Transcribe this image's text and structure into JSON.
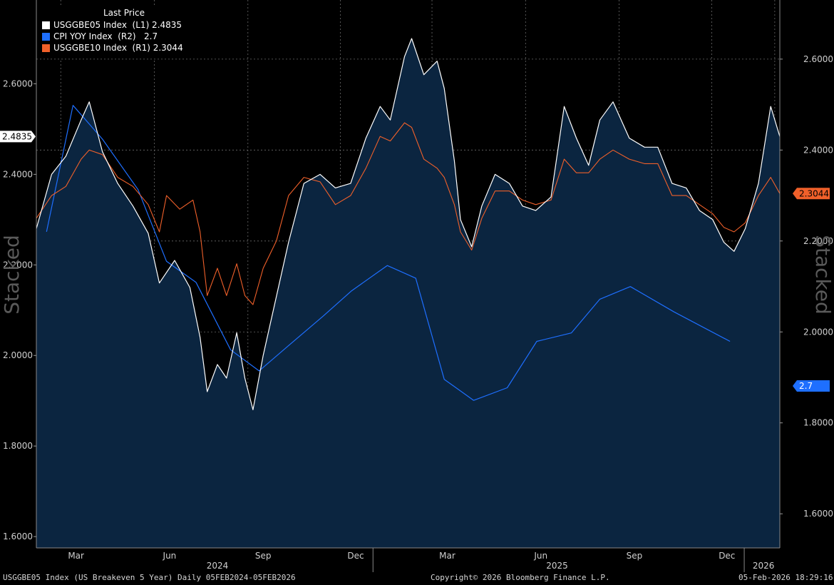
{
  "legend": {
    "header": "Last Price",
    "items": [
      {
        "label": "USGGBE05 Index  (L1) 2.4835",
        "color": "#ffffff"
      },
      {
        "label": "CPI YOY Index  (R2)   2.7",
        "color": "#1e6fff"
      },
      {
        "label": "USGGBE10 Index  (R1) 2.3044",
        "color": "#f0602a"
      }
    ]
  },
  "left_axis": {
    "label": "Stacked",
    "ticks": [
      "1.6000",
      "1.8000",
      "2.0000",
      "2.2000",
      "2.4000",
      "2.6000"
    ],
    "last_badge": "2.4835"
  },
  "right_axis": {
    "label": "Stacked",
    "ticks": [
      "1.6000",
      "1.8000",
      "2.0000",
      "2.2000",
      "2.4000",
      "2.6000"
    ],
    "badges": [
      "2.3044",
      "2.7"
    ]
  },
  "x_axis": {
    "months": [
      "Mar",
      "Jun",
      "Sep",
      "Dec",
      "Mar",
      "Jun",
      "Sep",
      "Dec"
    ],
    "years": [
      "2024",
      "2025",
      "2026"
    ]
  },
  "footer": {
    "left": "USGGBE05 Index (US Breakeven 5 Year) Daily 05FEB2024-05FEB2026",
    "center": "Copyright© 2026 Bloomberg Finance L.P.",
    "right": "05-Feb-2026 18:29:16"
  },
  "colors": {
    "area": "#0b2540",
    "be5": "#ffffff",
    "be10": "#f0602a",
    "cpi": "#1e6fff",
    "background": "#000000"
  },
  "chart_data": {
    "type": "line",
    "title": "",
    "x_range": [
      "2024-02-05",
      "2026-02-05"
    ],
    "left_axis_range": [
      1.575,
      2.785
    ],
    "right_axis_range": [
      1.525,
      2.73
    ],
    "grid": true,
    "series": [
      {
        "name": "USGGBE05 Index",
        "axis": "L1",
        "style": "area",
        "points": [
          [
            "2024-02-05",
            2.28
          ],
          [
            "2024-02-20",
            2.4
          ],
          [
            "2024-03-05",
            2.44
          ],
          [
            "2024-03-20",
            2.52
          ],
          [
            "2024-03-28",
            2.56
          ],
          [
            "2024-04-10",
            2.45
          ],
          [
            "2024-04-25",
            2.38
          ],
          [
            "2024-05-10",
            2.33
          ],
          [
            "2024-05-25",
            2.27
          ],
          [
            "2024-06-05",
            2.16
          ],
          [
            "2024-06-20",
            2.21
          ],
          [
            "2024-07-05",
            2.15
          ],
          [
            "2024-07-15",
            2.04
          ],
          [
            "2024-07-22",
            1.92
          ],
          [
            "2024-08-01",
            1.98
          ],
          [
            "2024-08-10",
            1.95
          ],
          [
            "2024-08-20",
            2.05
          ],
          [
            "2024-08-28",
            1.95
          ],
          [
            "2024-09-05",
            1.88
          ],
          [
            "2024-09-15",
            2.0
          ],
          [
            "2024-09-28",
            2.13
          ],
          [
            "2024-10-10",
            2.25
          ],
          [
            "2024-10-25",
            2.38
          ],
          [
            "2024-11-10",
            2.4
          ],
          [
            "2024-11-25",
            2.37
          ],
          [
            "2024-12-10",
            2.38
          ],
          [
            "2024-12-25",
            2.48
          ],
          [
            "2025-01-08",
            2.55
          ],
          [
            "2025-01-18",
            2.52
          ],
          [
            "2025-02-01",
            2.66
          ],
          [
            "2025-02-08",
            2.7
          ],
          [
            "2025-02-20",
            2.62
          ],
          [
            "2025-03-05",
            2.65
          ],
          [
            "2025-03-12",
            2.59
          ],
          [
            "2025-03-22",
            2.43
          ],
          [
            "2025-03-28",
            2.3
          ],
          [
            "2025-04-08",
            2.24
          ],
          [
            "2025-04-18",
            2.33
          ],
          [
            "2025-05-01",
            2.4
          ],
          [
            "2025-05-15",
            2.38
          ],
          [
            "2025-05-28",
            2.33
          ],
          [
            "2025-06-10",
            2.32
          ],
          [
            "2025-06-25",
            2.35
          ],
          [
            "2025-07-08",
            2.55
          ],
          [
            "2025-07-20",
            2.48
          ],
          [
            "2025-08-01",
            2.42
          ],
          [
            "2025-08-12",
            2.52
          ],
          [
            "2025-08-25",
            2.56
          ],
          [
            "2025-09-10",
            2.48
          ],
          [
            "2025-09-25",
            2.46
          ],
          [
            "2025-10-08",
            2.46
          ],
          [
            "2025-10-22",
            2.38
          ],
          [
            "2025-11-05",
            2.37
          ],
          [
            "2025-11-18",
            2.32
          ],
          [
            "2025-12-01",
            2.3
          ],
          [
            "2025-12-12",
            2.25
          ],
          [
            "2025-12-22",
            2.23
          ],
          [
            "2026-01-02",
            2.28
          ],
          [
            "2026-01-15",
            2.38
          ],
          [
            "2026-01-27",
            2.55
          ],
          [
            "2026-02-05",
            2.4835
          ]
        ]
      },
      {
        "name": "USGGBE10 Index",
        "axis": "R1",
        "points": [
          [
            "2024-02-05",
            2.25
          ],
          [
            "2024-02-20",
            2.3
          ],
          [
            "2024-03-05",
            2.32
          ],
          [
            "2024-03-20",
            2.38
          ],
          [
            "2024-03-28",
            2.4
          ],
          [
            "2024-04-10",
            2.39
          ],
          [
            "2024-04-25",
            2.34
          ],
          [
            "2024-05-10",
            2.32
          ],
          [
            "2024-05-25",
            2.28
          ],
          [
            "2024-06-05",
            2.22
          ],
          [
            "2024-06-12",
            2.3
          ],
          [
            "2024-06-25",
            2.27
          ],
          [
            "2024-07-08",
            2.29
          ],
          [
            "2024-07-15",
            2.22
          ],
          [
            "2024-07-22",
            2.08
          ],
          [
            "2024-08-01",
            2.14
          ],
          [
            "2024-08-10",
            2.08
          ],
          [
            "2024-08-20",
            2.15
          ],
          [
            "2024-08-28",
            2.08
          ],
          [
            "2024-09-05",
            2.06
          ],
          [
            "2024-09-15",
            2.14
          ],
          [
            "2024-09-28",
            2.2
          ],
          [
            "2024-10-10",
            2.3
          ],
          [
            "2024-10-25",
            2.34
          ],
          [
            "2024-11-10",
            2.33
          ],
          [
            "2024-11-25",
            2.28
          ],
          [
            "2024-12-10",
            2.3
          ],
          [
            "2024-12-25",
            2.36
          ],
          [
            "2025-01-08",
            2.43
          ],
          [
            "2025-01-18",
            2.42
          ],
          [
            "2025-02-01",
            2.46
          ],
          [
            "2025-02-08",
            2.45
          ],
          [
            "2025-02-20",
            2.38
          ],
          [
            "2025-03-05",
            2.36
          ],
          [
            "2025-03-12",
            2.34
          ],
          [
            "2025-03-22",
            2.28
          ],
          [
            "2025-03-28",
            2.22
          ],
          [
            "2025-04-08",
            2.18
          ],
          [
            "2025-04-18",
            2.25
          ],
          [
            "2025-05-01",
            2.31
          ],
          [
            "2025-05-15",
            2.31
          ],
          [
            "2025-05-28",
            2.29
          ],
          [
            "2025-06-10",
            2.28
          ],
          [
            "2025-06-25",
            2.29
          ],
          [
            "2025-07-08",
            2.38
          ],
          [
            "2025-07-20",
            2.35
          ],
          [
            "2025-08-01",
            2.35
          ],
          [
            "2025-08-12",
            2.38
          ],
          [
            "2025-08-25",
            2.4
          ],
          [
            "2025-09-10",
            2.38
          ],
          [
            "2025-09-25",
            2.37
          ],
          [
            "2025-10-08",
            2.37
          ],
          [
            "2025-10-22",
            2.3
          ],
          [
            "2025-11-05",
            2.3
          ],
          [
            "2025-11-18",
            2.28
          ],
          [
            "2025-12-01",
            2.26
          ],
          [
            "2025-12-12",
            2.23
          ],
          [
            "2025-12-22",
            2.22
          ],
          [
            "2026-01-02",
            2.24
          ],
          [
            "2026-01-15",
            2.3
          ],
          [
            "2026-01-27",
            2.34
          ],
          [
            "2026-02-05",
            2.3044
          ]
        ]
      },
      {
        "name": "CPI YOY Index",
        "axis": "R2",
        "points": [
          [
            "2024-02-15",
            2.3
          ],
          [
            "2024-03-12",
            2.6
          ],
          [
            "2024-04-10",
            2.52
          ],
          [
            "2024-05-15",
            2.4
          ],
          [
            "2024-06-12",
            2.23
          ],
          [
            "2024-07-11",
            2.18
          ],
          [
            "2024-08-14",
            2.02
          ],
          [
            "2024-09-11",
            1.97
          ],
          [
            "2024-10-10",
            2.03
          ],
          [
            "2024-11-13",
            2.1
          ],
          [
            "2024-12-11",
            2.16
          ],
          [
            "2025-01-15",
            2.22
          ],
          [
            "2025-02-12",
            2.19
          ],
          [
            "2025-03-12",
            1.95
          ],
          [
            "2025-04-10",
            1.9
          ],
          [
            "2025-05-13",
            1.93
          ],
          [
            "2025-06-11",
            2.04
          ],
          [
            "2025-07-15",
            2.06
          ],
          [
            "2025-08-12",
            2.14
          ],
          [
            "2025-09-11",
            2.17
          ],
          [
            "2025-10-24",
            2.11
          ],
          [
            "2025-12-18",
            2.04
          ]
        ],
        "plot_values_note_excluded": true
      }
    ]
  }
}
